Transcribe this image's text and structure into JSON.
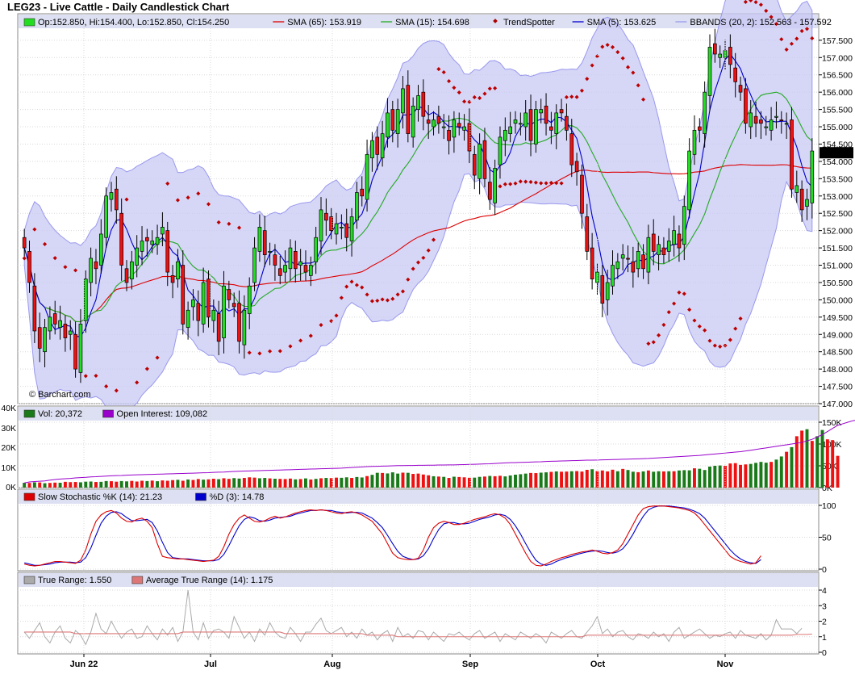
{
  "chart_data": [
    {
      "type": "candlestick",
      "title": "LEG23 - Live Cattle - Daily Candlestick Chart",
      "watermark": "© Barchart.com",
      "ylim": [
        147.0,
        157.8
      ],
      "y_ticks": [
        "157.500",
        "157.000",
        "156.500",
        "156.000",
        "155.500",
        "155.000",
        "154.500",
        "154.000",
        "153.500",
        "153.000",
        "152.500",
        "152.000",
        "151.500",
        "151.000",
        "150.500",
        "150.000",
        "149.500",
        "149.000",
        "148.500",
        "148.000",
        "147.500",
        "147.000"
      ],
      "last_price": "154.250",
      "x_labels": [
        "Jun 22",
        "Jul",
        "Aug",
        "Sep",
        "Oct",
        "Nov"
      ],
      "legend": [
        {
          "label": "Op:152.850, Hi:154.400, Lo:152.850, Cl:154.250",
          "color": "#22dd22",
          "marker": "box"
        },
        {
          "label": "SMA (65): 153.919",
          "color": "#dd0000",
          "marker": "line"
        },
        {
          "label": "SMA (15): 154.698",
          "color": "#22aa22",
          "marker": "line"
        },
        {
          "label": "TrendSpotter",
          "color": "#aa0000",
          "marker": "diamond"
        },
        {
          "label": "SMA (5): 153.625",
          "color": "#0000cc",
          "marker": "line"
        },
        {
          "label": "BBANDS (20, 2): 152.563 - 157.592",
          "color": "#9999ee",
          "marker": "line"
        }
      ],
      "closes": [
        151.5,
        150.5,
        149.1,
        148.6,
        149.2,
        149.5,
        149.3,
        149.4,
        148.9,
        149.1,
        148.0,
        149.3,
        150.6,
        151.2,
        150.9,
        151.9,
        153.0,
        153.1,
        152.6,
        151.0,
        150.5,
        151.1,
        151.5,
        151.7,
        151.7,
        151.7,
        151.8,
        152.1,
        150.8,
        150.5,
        151.1,
        149.3,
        149.7,
        150.0,
        149.4,
        150.5,
        149.5,
        149.7,
        148.8,
        150.4,
        150.0,
        149.8,
        148.8,
        149.7,
        150.4,
        151.5,
        152.1,
        151.3,
        151.4,
        151.0,
        150.7,
        151.0,
        151.5,
        150.9,
        151.1,
        150.8,
        151.0,
        151.8,
        152.6,
        152.3,
        152.0,
        152.2,
        152.1,
        151.8,
        152.4,
        153.1,
        153.0,
        154.2,
        154.6,
        154.2,
        154.8,
        155.4,
        154.9,
        155.5,
        156.1,
        154.8,
        155.6,
        155.9,
        155.3,
        155.1,
        155.2,
        155.1,
        155.0,
        154.6,
        155.2,
        155.0,
        155.0,
        154.3,
        153.6,
        154.5,
        153.5,
        152.9,
        153.8,
        154.7,
        154.9,
        155.0,
        155.2,
        155.1,
        155.4,
        154.6,
        155.5,
        155.5,
        155.1,
        154.9,
        155.4,
        155.4,
        154.9,
        153.9,
        153.7,
        152.5,
        151.4,
        150.6,
        150.8,
        149.9,
        150.5,
        151.0,
        151.1,
        151.3,
        151.2,
        150.8,
        151.4,
        150.9,
        151.8,
        151.4,
        151.6,
        151.3,
        151.7,
        152.0,
        151.5,
        152.7,
        154.3,
        154.9,
        154.9,
        156.0,
        157.3,
        157.1,
        157.1,
        157.2,
        156.8,
        156.3,
        156.0,
        155.1,
        155.4,
        155.1,
        155.1,
        155.0,
        155.2,
        155.3,
        155.2,
        155.1,
        153.2,
        153.3,
        152.6,
        152.9,
        154.3
      ],
      "volume_axis": [
        "150K",
        "100K",
        "50K",
        "0K"
      ],
      "volume_left_axis": [
        "40K",
        "30K",
        "20K",
        "10K",
        "0K"
      ],
      "volume_legend": [
        {
          "label": "Vol: 20,372",
          "color": "#1a7a1a",
          "marker": "box"
        },
        {
          "label": "Open Interest: 109,082",
          "color": "#9900cc",
          "marker": "box"
        }
      ],
      "volumes": [
        3.1,
        3.0,
        3.4,
        3.3,
        2.8,
        3.0,
        3.2,
        3.1,
        3.7,
        3.5,
        3.6,
        3.4,
        3.8,
        3.9,
        3.6,
        3.7,
        4.2,
        4.1,
        3.8,
        4.2,
        4.0,
        4.3,
        3.9,
        4.4,
        4.2,
        4.5,
        4.1,
        4.6,
        4.4,
        4.8,
        5.0,
        4.4,
        5.2,
        4.9,
        5.5,
        5.1,
        5.3,
        5.7,
        5.4,
        6.0,
        5.6,
        6.1,
        5.8,
        6.2,
        6.6,
        6.4,
        6.0,
        6.2,
        5.9,
        5.7,
        5.6,
        5.5,
        5.8,
        5.3,
        5.5,
        5.9,
        5.2,
        5.6,
        6.0,
        6.2,
        6.1,
        6.4,
        6.3,
        6.6,
        6.2,
        6.8,
        6.5,
        7.4,
        8.2,
        9.5,
        9.4,
        9.1,
        9.8,
        9.0,
        9.6,
        9.5,
        8.8,
        9.0,
        8.4,
        7.9,
        7.3,
        7.1,
        6.9,
        6.2,
        7.0,
        6.8,
        6.6,
        6.3,
        6.4,
        6.9,
        7.1,
        7.5,
        7.3,
        7.6,
        7.2,
        7.8,
        8.3,
        8.6,
        9.0,
        9.4,
        9.3,
        9.6,
        9.8,
        10.1,
        10.4,
        10.2,
        10.3,
        10.5,
        10.6,
        10.3,
        11.4,
        11.8,
        10.6,
        11.0,
        10.4,
        11.5,
        10.5,
        12.0,
        11.3,
        10.2,
        9.9,
        10.4,
        11.0,
        10.2,
        10.5,
        10.4,
        10.5,
        10.5,
        11.0,
        11.2,
        11.1,
        12.4,
        12.1,
        11.3,
        13.5,
        14.0,
        14.2,
        14.0,
        15.5,
        15.7,
        14.6,
        14.9,
        15.2,
        15.9,
        16.5,
        16.0,
        16.5,
        18.0,
        20.0,
        23.0,
        26.0,
        33.0,
        36.6,
        37.5,
        30.0,
        33.0,
        37.0,
        31.0,
        30.5,
        20.4
      ],
      "volume_colors": "GRGRGRRGRRRGGGRGGRRGGRRRGRGRRRGRGRRGRRGRRGGRRRGGRGRRRGRGRGRGRRGGRGGRGGRGGGRGRRRRGRGRGRRRGGRGRRGGGGGRRGGRGRRGRRRGRRRRGRGGRGRGGRGRGGGRGGGGGRRRRRGGGGRGGRGRRGRGG",
      "open_interest": [
        3.0,
        3.6,
        3.9,
        4.1,
        4.3,
        4.8,
        5.2,
        5.5,
        5.7,
        5.9,
        6.2,
        6.4,
        6.6,
        6.9,
        7.0,
        7.2,
        7.4,
        7.6,
        7.7,
        7.8,
        8.0,
        8.1,
        8.2,
        8.3,
        8.4,
        8.5,
        8.6,
        8.7,
        8.8,
        8.9,
        9.0,
        9.1,
        9.2,
        9.3,
        9.4,
        9.5,
        9.6,
        9.8,
        9.9,
        10.0,
        10.2,
        10.4,
        10.5,
        10.6,
        10.7,
        10.8,
        10.9,
        11.0,
        11.1,
        11.2,
        11.3,
        11.4,
        11.5,
        11.6,
        11.7,
        11.8,
        11.9,
        12.0,
        12.1,
        12.2,
        12.3,
        12.4,
        12.5,
        12.7,
        12.9,
        13.1,
        13.3,
        13.5,
        13.6,
        13.7,
        13.8,
        13.9,
        14.0,
        14.1,
        14.1,
        14.2,
        14.2,
        14.3,
        14.3,
        14.4,
        14.4,
        14.5,
        14.5,
        14.6,
        14.6,
        14.7,
        14.8,
        14.9,
        15.0,
        15.1,
        15.2,
        15.3,
        15.5,
        15.7,
        15.9,
        16.0,
        16.1,
        16.2,
        16.3,
        16.4,
        16.5,
        16.6,
        16.8,
        16.9,
        17.0,
        17.1,
        17.2,
        17.3,
        17.4,
        17.5,
        17.6,
        17.6,
        17.7,
        17.8,
        17.9,
        18.0,
        18.1,
        18.2,
        18.3,
        18.4,
        18.5,
        18.6,
        18.7,
        18.9,
        19.1,
        19.3,
        19.5,
        19.7,
        19.9,
        20.1,
        20.3,
        20.5,
        20.7,
        21.0,
        21.3,
        21.6,
        21.9,
        22.2,
        22.5,
        22.8,
        23.1,
        23.5,
        24.0,
        24.5,
        25.0,
        25.5,
        26.0,
        26.5,
        27.0,
        27.5,
        28.0,
        28.5,
        29.0,
        30.0,
        31.0,
        32.5,
        34.0,
        36.0,
        38.0,
        40.0,
        41.0,
        42.0,
        43.0,
        43.5
      ],
      "stoch_axis": [
        "100",
        "50",
        "0"
      ],
      "stoch_legend": [
        {
          "label": "Slow Stochastic %K (14): 21.23",
          "color": "#dd0000",
          "marker": "box"
        },
        {
          "label": "%D (3): 14.78",
          "color": "#0000cc",
          "marker": "box"
        }
      ],
      "stoch_k": [
        8,
        6,
        5,
        6,
        8,
        10,
        12,
        12,
        11,
        10,
        9,
        14,
        30,
        55,
        75,
        85,
        90,
        92,
        88,
        80,
        75,
        74,
        78,
        80,
        75,
        65,
        40,
        20,
        18,
        17,
        16,
        16,
        15,
        14,
        13,
        12,
        13,
        14,
        20,
        35,
        55,
        70,
        80,
        85,
        80,
        75,
        74,
        76,
        80,
        83,
        80,
        82,
        85,
        88,
        90,
        92,
        93,
        92,
        93,
        92,
        90,
        88,
        87,
        89,
        90,
        88,
        85,
        80,
        75,
        65,
        55,
        40,
        25,
        18,
        16,
        15,
        15,
        17,
        30,
        50,
        65,
        72,
        75,
        73,
        70,
        70,
        72,
        75,
        78,
        80,
        82,
        85,
        87,
        85,
        80,
        70,
        55,
        40,
        25,
        12,
        6,
        5,
        8,
        12,
        15,
        18,
        20,
        23,
        25,
        27,
        28,
        30,
        28,
        25,
        24,
        26,
        30,
        40,
        55,
        70,
        85,
        95,
        98,
        99,
        99,
        99,
        98,
        97,
        96,
        94,
        92,
        88,
        80,
        70,
        60,
        50,
        40,
        30,
        20,
        15,
        12,
        10,
        8,
        10,
        21
      ],
      "stoch_d": [
        10,
        8,
        6,
        6,
        7,
        8,
        10,
        11,
        11,
        11,
        10,
        11,
        18,
        33,
        53,
        72,
        83,
        89,
        90,
        87,
        81,
        76,
        76,
        77,
        78,
        73,
        60,
        42,
        26,
        18,
        17,
        16,
        16,
        15,
        14,
        13,
        13,
        13,
        15,
        23,
        37,
        53,
        68,
        78,
        82,
        80,
        76,
        75,
        77,
        80,
        81,
        82,
        83,
        86,
        88,
        90,
        92,
        92,
        93,
        92,
        92,
        90,
        89,
        88,
        89,
        89,
        88,
        84,
        80,
        73,
        65,
        53,
        40,
        28,
        20,
        17,
        15,
        16,
        21,
        32,
        48,
        62,
        71,
        73,
        73,
        71,
        71,
        72,
        75,
        78,
        80,
        82,
        85,
        86,
        84,
        78,
        68,
        55,
        40,
        26,
        14,
        8,
        6,
        8,
        12,
        15,
        18,
        20,
        23,
        25,
        27,
        28,
        29,
        28,
        26,
        25,
        27,
        32,
        42,
        55,
        70,
        83,
        93,
        97,
        99,
        99,
        99,
        98,
        97,
        96,
        94,
        91,
        87,
        80,
        70,
        60,
        50,
        40,
        30,
        22,
        16,
        12,
        10,
        9,
        15
      ],
      "tr_axis": [
        "4",
        "3",
        "2",
        "1",
        "0"
      ],
      "tr_legend": [
        {
          "label": "True Range: 1.550",
          "color": "#aaaaaa",
          "marker": "box"
        },
        {
          "label": "Average True Range (14): 1.175",
          "color": "#dd7777",
          "marker": "box"
        }
      ],
      "true_range": [
        1.3,
        0.9,
        1.4,
        1.9,
        1.0,
        0.6,
        1.3,
        1.7,
        0.9,
        0.6,
        1.4,
        1.1,
        0.5,
        1.3,
        2.5,
        1.5,
        1.2,
        2.0,
        1.4,
        0.9,
        1.3,
        1.5,
        0.9,
        1.0,
        1.7,
        1.2,
        0.8,
        1.5,
        1.1,
        1.6,
        0.7,
        1.3,
        4.0,
        1.3,
        0.8,
        1.9,
        0.9,
        1.4,
        1.5,
        1.3,
        0.9,
        2.3,
        1.6,
        0.9,
        1.3,
        0.7,
        1.5,
        1.1,
        1.9,
        1.3,
        1.0,
        0.9,
        1.6,
        1.2,
        0.7,
        1.3,
        1.3,
        1.8,
        2.2,
        1.4,
        1.2,
        1.4,
        1.6,
        1.0,
        1.3,
        0.9,
        1.5,
        1.1,
        1.3,
        0.8,
        1.2,
        1.4,
        0.7,
        1.6,
        1.0,
        1.2,
        0.9,
        1.4,
        1.3,
        0.8,
        1.3,
        1.0,
        0.7,
        1.2,
        1.1,
        1.3,
        1.0,
        0.8,
        1.2,
        1.4,
        0.9,
        1.1,
        1.3,
        0.7,
        1.2,
        1.0,
        0.8,
        1.3,
        1.1,
        0.9,
        1.2,
        1.0,
        0.6,
        1.3,
        1.1,
        0.9,
        1.2,
        1.4,
        1.0,
        0.9,
        1.3,
        1.7,
        2.3,
        1.2,
        1.5,
        1.0,
        1.3,
        1.4,
        1.0,
        0.8,
        1.2,
        1.1,
        0.9,
        1.3,
        1.0,
        1.2,
        0.7,
        1.3,
        1.6,
        0.9,
        1.1,
        1.3,
        1.5,
        1.2,
        0.9,
        1.1,
        1.0,
        1.2,
        1.3,
        0.9,
        1.4,
        1.1,
        1.0,
        0.9,
        1.2,
        0.8,
        1.1,
        2.1,
        1.5,
        1.5,
        1.5,
        1.2,
        1.55
      ],
      "atr": [
        1.3,
        1.3,
        1.3,
        1.3,
        1.3,
        1.3,
        1.3,
        1.3,
        1.3,
        1.3,
        1.2,
        1.2,
        1.2,
        1.2,
        1.2,
        1.2,
        1.2,
        1.2,
        1.2,
        1.2,
        1.2,
        1.2,
        1.2,
        1.2,
        1.2,
        1.2,
        1.2,
        1.2,
        1.2,
        1.2,
        1.2,
        1.3,
        1.3,
        1.3,
        1.3,
        1.3,
        1.3,
        1.3,
        1.3,
        1.3,
        1.3,
        1.3,
        1.3,
        1.3,
        1.3,
        1.3,
        1.3,
        1.3,
        1.3,
        1.3,
        1.3,
        1.2,
        1.2,
        1.2,
        1.2,
        1.2,
        1.2,
        1.2,
        1.2,
        1.2,
        1.2,
        1.2,
        1.2,
        1.2,
        1.2,
        1.2,
        1.2,
        1.1,
        1.1,
        1.1,
        1.1,
        1.1,
        1.1,
        1.0,
        1.0,
        1.0,
        1.0,
        1.0,
        1.0,
        1.0,
        1.0,
        1.0,
        1.0,
        1.0,
        1.0,
        1.0,
        1.0,
        1.0,
        1.0,
        1.0,
        1.0,
        1.0,
        1.0,
        1.0,
        1.0,
        1.0,
        1.0,
        1.0,
        1.0,
        1.0,
        1.0,
        1.0,
        1.0,
        1.0,
        1.0,
        1.0,
        1.0,
        1.0,
        1.0,
        1.0,
        1.1,
        1.1,
        1.1,
        1.1,
        1.1,
        1.1,
        1.1,
        1.1,
        1.1,
        1.1,
        1.1,
        1.1,
        1.1,
        1.1,
        1.1,
        1.1,
        1.1,
        1.1,
        1.1,
        1.1,
        1.1,
        1.1,
        1.1,
        1.1,
        1.1,
        1.1,
        1.1,
        1.1,
        1.1,
        1.1,
        1.1,
        1.1,
        1.1,
        1.1,
        1.1,
        1.1,
        1.1,
        1.1,
        1.1,
        1.1,
        1.1,
        1.15,
        1.15,
        1.15,
        1.175
      ]
    }
  ]
}
